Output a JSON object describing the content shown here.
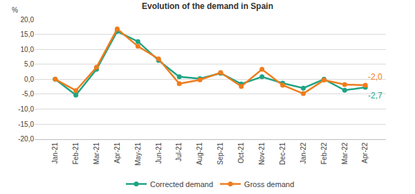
{
  "chart_data": {
    "type": "line",
    "title": "Evolution of the demand in Spain",
    "ylabel": "%",
    "categories": [
      "Jan-21",
      "Feb-21",
      "Mar-21",
      "Apr-21",
      "May-21",
      "Jun-21",
      "Jul-21",
      "Aug-21",
      "Sep-21",
      "Oct-21",
      "Nov-21",
      "Dec-21",
      "Jan-22",
      "Feb-22",
      "Mar-22",
      "Apr-22"
    ],
    "series": [
      {
        "name": "Corrected demand",
        "color": "#1fa383",
        "marker": "circle",
        "line_style": "solid",
        "values": [
          0.0,
          -5.3,
          3.3,
          16.0,
          12.6,
          6.3,
          0.8,
          0.2,
          2.0,
          -1.6,
          0.8,
          -1.3,
          -3.0,
          0.0,
          -3.7,
          -2.7
        ],
        "value_labels": [
          null,
          null,
          null,
          null,
          null,
          null,
          null,
          null,
          null,
          null,
          null,
          null,
          null,
          null,
          null,
          "-2,7"
        ]
      },
      {
        "name": "Gross demand",
        "color": "#f07c1c",
        "marker": "circle",
        "line_style": "solid",
        "values": [
          0.0,
          -3.8,
          4.0,
          16.8,
          11.0,
          6.8,
          -1.5,
          -0.2,
          2.2,
          -2.4,
          3.3,
          -2.0,
          -4.8,
          -0.3,
          -1.8,
          -2.0
        ],
        "value_labels": [
          null,
          null,
          null,
          null,
          null,
          null,
          null,
          null,
          null,
          null,
          null,
          null,
          null,
          null,
          null,
          "-2,0"
        ]
      }
    ],
    "ylim": [
      -20,
      20
    ],
    "yticks": [
      {
        "value": -20,
        "label": "-20,0"
      },
      {
        "value": -15,
        "label": "-15,0"
      },
      {
        "value": -10,
        "label": "-10,0"
      },
      {
        "value": -5,
        "label": "-5,0"
      },
      {
        "value": 0,
        "label": "0,0"
      },
      {
        "value": 5,
        "label": "5,0"
      },
      {
        "value": 10,
        "label": "10,0"
      },
      {
        "value": 15,
        "label": "15,0"
      },
      {
        "value": 20,
        "label": "20,0"
      }
    ],
    "grid": true,
    "legend": "bottom"
  }
}
